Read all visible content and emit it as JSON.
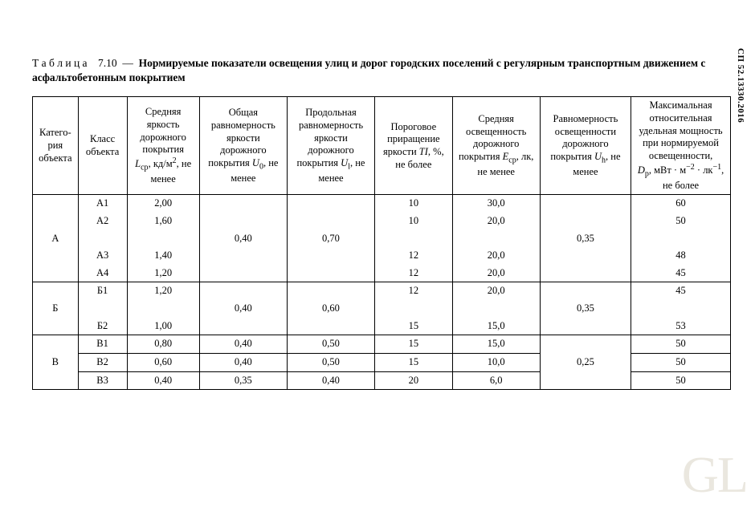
{
  "doc_id": "СП 52.13330.2016",
  "title": {
    "prefix_spaced": "Т а б л и ц а",
    "number": "7.10",
    "dash": "—",
    "text": "Нормируемые показатели освещения улиц и дорог городских поселений с регулярным транспортным движением с асфальтобетонным покрытием"
  },
  "watermark": "GL",
  "headers": {
    "h0": "Катего-\nрия\nобъекта",
    "h1": "Класс\nобъекта",
    "h2_a": "Средняя яркость дорожного покрытия",
    "h2_sym": "L",
    "h2_sub": "ср",
    "h2_unit": ", кд/м",
    "h2_sup": "2",
    "h2_b": ", не менее",
    "h3_a": "Общая равномерность яркости дорожного покрытия",
    "h3_sym": "U",
    "h3_sub": "0",
    "h3_b": ", не менее",
    "h4_a": "Продольная равномерность яркости дорожного покрытия",
    "h4_sym": "U",
    "h4_sub": "l",
    "h4_b": ", не менее",
    "h5_a": "Пороговое приращение яркости",
    "h5_sym": "TI",
    "h5_b": ", %, не более",
    "h6_a": "Средняя освещенность дорожного покрытия",
    "h6_sym": "E",
    "h6_sub": "ср",
    "h6_b": ", лк, не менее",
    "h7_a": "Равномерность освещенности дорожного покрытия",
    "h7_sym": "U",
    "h7_sub": "h",
    "h7_b": ", не менее",
    "h8_a": "Максимальная относительная удельная мощность при нормируемой освещенности,",
    "h8_sym": "D",
    "h8_sub": "p",
    "h8_unit": ", мВт · м",
    "h8_sup1": "−2",
    "h8_mid": " · лк",
    "h8_sup2": "−1",
    "h8_b": ", не более"
  },
  "groups": [
    {
      "cat": "А",
      "u0": "0,40",
      "ul": "0,70",
      "uh": "0,35",
      "rows": [
        {
          "cls": "А1",
          "L": "2,00",
          "TI": "10",
          "E": "30,0",
          "D": "60"
        },
        {
          "cls": "А2",
          "L": "1,60",
          "TI": "10",
          "E": "20,0",
          "D": "50"
        },
        {
          "cls": "А3",
          "L": "1,40",
          "TI": "12",
          "E": "20,0",
          "D": "48"
        },
        {
          "cls": "А4",
          "L": "1,20",
          "TI": "12",
          "E": "20,0",
          "D": "45"
        }
      ]
    },
    {
      "cat": "Б",
      "u0": "0,40",
      "ul": "0,60",
      "uh": "0,35",
      "rows": [
        {
          "cls": "Б1",
          "L": "1,20",
          "TI": "12",
          "E": "20,0",
          "D": "45"
        },
        {
          "cls": "Б2",
          "L": "1,00",
          "TI": "15",
          "E": "15,0",
          "D": "53"
        }
      ]
    },
    {
      "cat": "В",
      "uh": "0,25",
      "rows": [
        {
          "cls": "В1",
          "L": "0,80",
          "u0": "0,40",
          "ul": "0,50",
          "TI": "15",
          "E": "15,0",
          "D": "50"
        },
        {
          "cls": "В2",
          "L": "0,60",
          "u0": "0,40",
          "ul": "0,50",
          "TI": "15",
          "E": "10,0",
          "D": "50"
        },
        {
          "cls": "В3",
          "L": "0,40",
          "u0": "0,35",
          "ul": "0,40",
          "TI": "20",
          "E": "6,0",
          "D": "50"
        }
      ]
    }
  ]
}
